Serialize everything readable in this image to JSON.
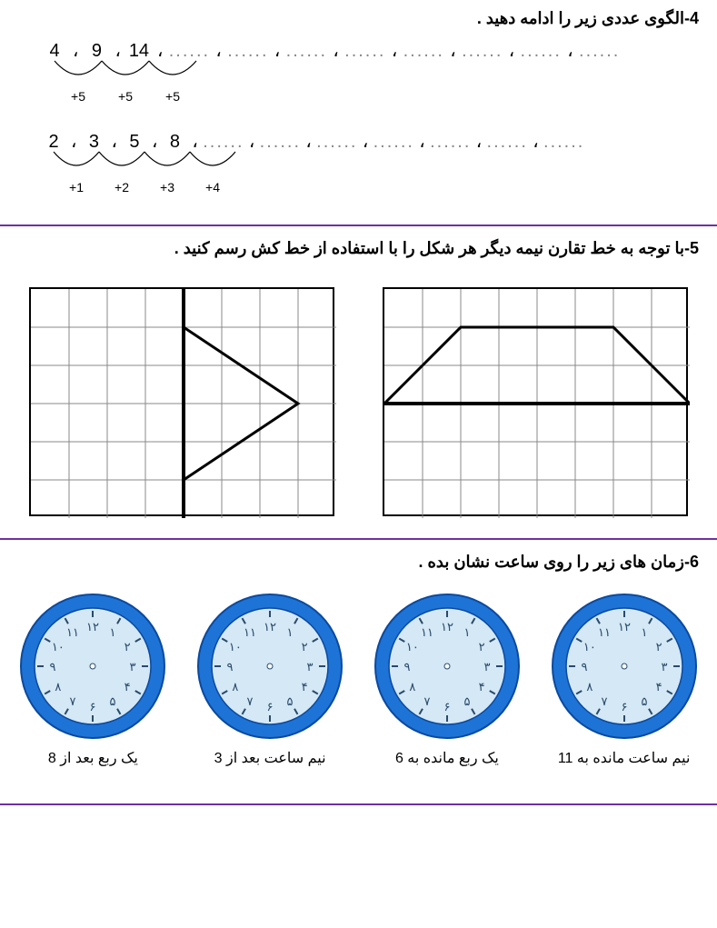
{
  "q4": {
    "title": "4-الگوی عددی زیر را ادامه دهید .",
    "seq1": {
      "nums": [
        "4",
        "9",
        "14"
      ],
      "sep": "،",
      "steps": [
        "+5",
        "+5",
        "+5"
      ],
      "blank_count": 8,
      "num_fontsize": 20,
      "num_spacing": 40,
      "arc_width": 38,
      "arc_height": 16,
      "step_fontsize": 14
    },
    "seq2": {
      "nums": [
        "2",
        "3",
        "5",
        "8"
      ],
      "sep": "،",
      "steps": [
        "+1",
        "+2",
        "+3",
        "+4"
      ],
      "blank_count": 7,
      "num_fontsize": 20,
      "num_spacing": 38,
      "arc_width": 36,
      "arc_height": 16,
      "step_fontsize": 14
    }
  },
  "q5": {
    "title": "5-با توجه به خط تقارن نیمه دیگر هر شکل را با استفاده از خط کش رسم کنید .",
    "grids": {
      "cols": 8,
      "rows": 6,
      "cell_size": 42,
      "border_color": "#000000",
      "grid_line_color": "#888888",
      "grid_line_width": 1
    },
    "shape_right": {
      "type": "triangle-half",
      "sym_line": "vertical",
      "sym_col": 4,
      "points": [
        [
          4,
          1
        ],
        [
          7,
          3
        ],
        [
          4,
          5
        ]
      ],
      "line_width": 3
    },
    "shape_left": {
      "type": "trapezoid-half",
      "sym_line": "horizontal",
      "sym_row": 3,
      "points": [
        [
          0,
          3
        ],
        [
          1,
          2
        ],
        [
          2,
          1
        ],
        [
          6,
          1
        ],
        [
          7,
          2
        ],
        [
          8,
          3
        ]
      ],
      "half_points": [
        [
          0,
          3
        ],
        [
          0,
          3
        ],
        [
          1,
          2
        ],
        [
          2,
          1
        ],
        [
          6,
          1
        ],
        [
          7,
          2
        ],
        [
          8,
          3
        ],
        [
          8,
          3
        ]
      ],
      "line_width": 3
    }
  },
  "q6": {
    "title": "6-زمان های زیر را روی ساعت نشان بده .",
    "clocks": [
      {
        "label": "یک ربع بعد از 8"
      },
      {
        "label": "نیم ساعت بعد از 3"
      },
      {
        "label": "یک ربع مانده به 6"
      },
      {
        "label": "نیم ساعت مانده به 11"
      }
    ],
    "clock_style": {
      "outer_radius": 80,
      "rim_width": 16,
      "rim_color": "#1e73d6",
      "rim_inner_stroke": "#0a4aa0",
      "face_color": "#d4e8f5",
      "numeral_color": "#2a4a6a",
      "numeral_fontsize": 13,
      "numerals": [
        "۱۲",
        "۱",
        "۲",
        "۳",
        "۴",
        "۵",
        "۶",
        "۷",
        "۸",
        "۹",
        "۱۰",
        "۱۱"
      ],
      "tick_color": "#2a4a6a"
    }
  },
  "colors": {
    "divider": "#7030a0",
    "text": "#000000",
    "bg": "#ffffff"
  }
}
